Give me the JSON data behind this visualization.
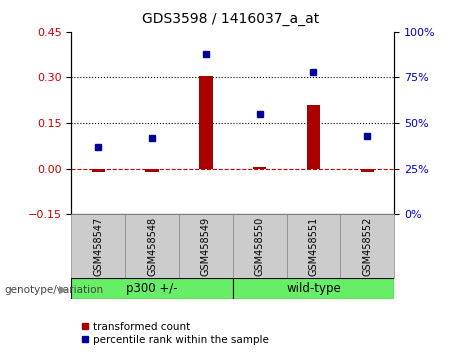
{
  "title": "GDS3598 / 1416037_a_at",
  "samples": [
    "GSM458547",
    "GSM458548",
    "GSM458549",
    "GSM458550",
    "GSM458551",
    "GSM458552"
  ],
  "transformed_count": [
    -0.01,
    -0.012,
    0.305,
    0.005,
    0.21,
    -0.012
  ],
  "percentile_rank": [
    37,
    42,
    88,
    55,
    78,
    43
  ],
  "bar_color": "#AA0000",
  "dot_color": "#000099",
  "left_ylim": [
    -0.15,
    0.45
  ],
  "right_ylim": [
    0,
    100
  ],
  "left_yticks": [
    -0.15,
    0.0,
    0.15,
    0.3,
    0.45
  ],
  "right_yticks": [
    0,
    25,
    50,
    75,
    100
  ],
  "hline_y": [
    0.15,
    0.3
  ],
  "zero_line_color": "#CC0000",
  "p300_color": "#66EE66",
  "wildtype_color": "#66EE66",
  "sample_box_color": "#CCCCCC",
  "legend_red_label": "transformed count",
  "legend_blue_label": "percentile rank within the sample",
  "genotype_label": "genotype/variation"
}
